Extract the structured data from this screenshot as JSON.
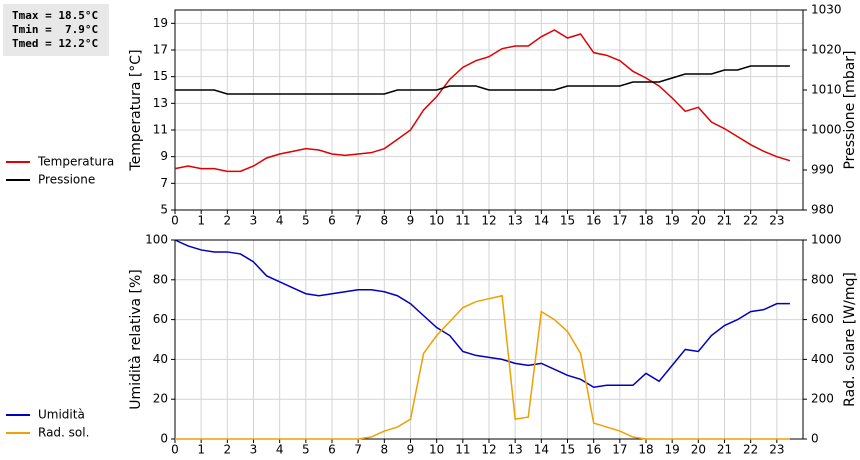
{
  "summary": [
    "Tmax = 18.5°C",
    "Tmin =  7.9°C",
    "Tmed = 12.2°C"
  ],
  "chart_data": [
    {
      "type": "line",
      "ylabel": "Temperatura [°C]",
      "y2label": "Pressione [mbar]",
      "x": [
        0,
        0.5,
        1,
        1.5,
        2,
        2.5,
        3,
        3.5,
        4,
        4.5,
        5,
        5.5,
        6,
        6.5,
        7,
        7.5,
        8,
        8.5,
        9,
        9.5,
        10,
        10.5,
        11,
        11.5,
        12,
        12.5,
        13,
        13.5,
        14,
        14.5,
        15,
        15.5,
        16,
        16.5,
        17,
        17.5,
        18,
        18.5,
        19,
        19.5,
        20,
        20.5,
        21,
        21.5,
        22,
        22.5,
        23,
        23.5
      ],
      "xlim": [
        0,
        24
      ],
      "xticks": [
        0,
        1,
        2,
        3,
        4,
        5,
        6,
        7,
        8,
        9,
        10,
        11,
        12,
        13,
        14,
        15,
        16,
        17,
        18,
        19,
        20,
        21,
        22,
        23
      ],
      "ylim": [
        5,
        20
      ],
      "yticks": [
        5,
        7,
        9,
        11,
        13,
        15,
        17,
        19
      ],
      "y2lim": [
        980,
        1030
      ],
      "y2ticks": [
        980,
        990,
        1000,
        1010,
        1020,
        1030
      ],
      "grid": true,
      "legend": "left",
      "series": [
        {
          "name": "Temperatura",
          "color": "#e00000",
          "values": [
            8.1,
            8.3,
            8.1,
            8.1,
            7.9,
            7.9,
            8.3,
            8.9,
            9.2,
            9.4,
            9.6,
            9.5,
            9.2,
            9.1,
            9.2,
            9.3,
            9.6,
            10.3,
            11,
            12.5,
            13.5,
            14.8,
            15.7,
            16.2,
            16.5,
            17.1,
            17.3,
            17.3,
            18.0,
            18.5,
            17.9,
            18.2,
            16.8,
            16.6,
            16.2,
            15.4,
            14.9,
            14.3,
            13.4,
            12.4,
            12.7,
            11.6,
            11.1,
            10.5,
            9.9,
            9.4,
            9.0,
            8.7
          ]
        },
        {
          "name": "Pressione",
          "color": "#000000",
          "axis": "y2",
          "values": [
            1010,
            1010,
            1010,
            1010,
            1009,
            1009,
            1009,
            1009,
            1009,
            1009,
            1009,
            1009,
            1009,
            1009,
            1009,
            1009,
            1009,
            1010,
            1010,
            1010,
            1010,
            1011,
            1011,
            1011,
            1010,
            1010,
            1010,
            1010,
            1010,
            1010,
            1011,
            1011,
            1011,
            1011,
            1011,
            1012,
            1012,
            1012,
            1013,
            1014,
            1014,
            1014,
            1015,
            1015,
            1016,
            1016,
            1016,
            1016
          ]
        }
      ]
    },
    {
      "type": "line",
      "ylabel": "Umidità relativa [%]",
      "y2label": "Rad. solare [W/mq]",
      "x": [
        0,
        0.5,
        1,
        1.5,
        2,
        2.5,
        3,
        3.5,
        4,
        4.5,
        5,
        5.5,
        6,
        6.5,
        7,
        7.5,
        8,
        8.5,
        9,
        9.5,
        10,
        10.5,
        11,
        11.5,
        12,
        12.5,
        13,
        13.5,
        14,
        14.5,
        15,
        15.5,
        16,
        16.5,
        17,
        17.5,
        18,
        18.5,
        19,
        19.5,
        20,
        20.5,
        21,
        21.5,
        22,
        22.5,
        23,
        23.5
      ],
      "xlim": [
        0,
        24
      ],
      "xticks": [
        0,
        1,
        2,
        3,
        4,
        5,
        6,
        7,
        8,
        9,
        10,
        11,
        12,
        13,
        14,
        15,
        16,
        17,
        18,
        19,
        20,
        21,
        22,
        23
      ],
      "ylim": [
        0,
        100
      ],
      "yticks": [
        0,
        20,
        40,
        60,
        80,
        100
      ],
      "y2lim": [
        0,
        1000
      ],
      "y2ticks": [
        0,
        200,
        400,
        600,
        800,
        1000
      ],
      "grid": true,
      "legend": "left",
      "series": [
        {
          "name": "Umidità",
          "color": "#0000c0",
          "values": [
            100,
            97,
            95,
            94,
            94,
            93,
            89,
            82,
            79,
            76,
            73,
            72,
            73,
            74,
            75,
            75,
            74,
            72,
            68,
            62,
            56,
            52,
            44,
            42,
            41,
            40,
            38,
            37,
            38,
            35,
            32,
            30,
            26,
            27,
            27,
            27,
            33,
            29,
            37,
            45,
            44,
            52,
            57,
            60,
            64,
            65,
            68,
            68
          ]
        },
        {
          "name": "Rad. sol.",
          "color": "#f0a000",
          "axis": "y2",
          "values": [
            0,
            0,
            0,
            0,
            0,
            0,
            0,
            0,
            0,
            0,
            0,
            0,
            0,
            0,
            0,
            10,
            40,
            60,
            100,
            430,
            520,
            590,
            660,
            690,
            705,
            720,
            100,
            110,
            640,
            600,
            540,
            430,
            80,
            60,
            40,
            10,
            0,
            0,
            0,
            0,
            0,
            0,
            0,
            0,
            0,
            0,
            0,
            0
          ]
        }
      ]
    }
  ]
}
